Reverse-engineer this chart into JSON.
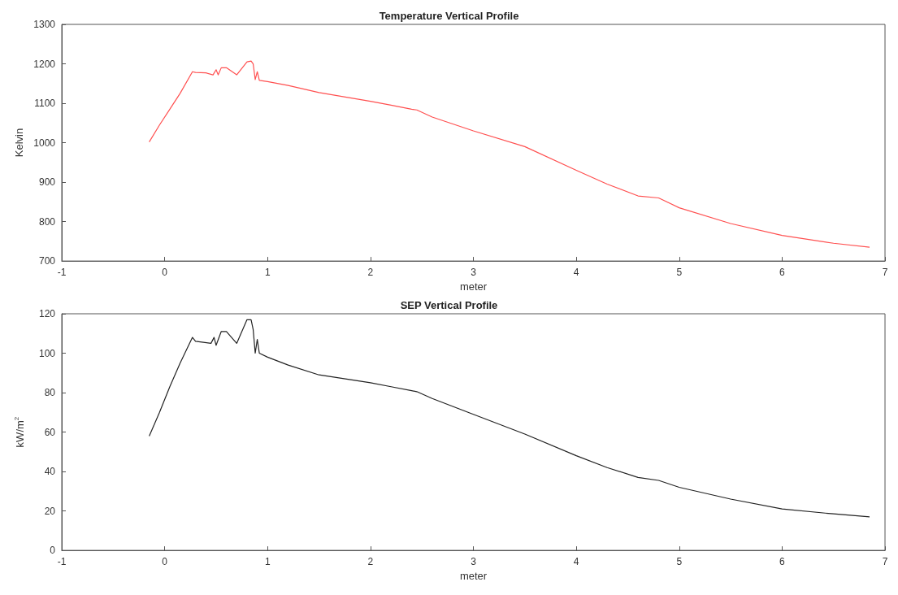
{
  "chart_data": [
    {
      "type": "line",
      "title": "Temperature Vertical Profile",
      "xlabel": "meter",
      "ylabel": "Kelvin",
      "xlim": [
        -1,
        7
      ],
      "xticks": [
        -1,
        0,
        1,
        2,
        3,
        4,
        5,
        6,
        7
      ],
      "ylim": [
        700,
        1300
      ],
      "yticks": [
        700,
        800,
        900,
        1000,
        1100,
        1200,
        1300
      ],
      "grid": false,
      "marker": "none",
      "line_style": "solid",
      "x": [
        -0.15,
        -0.05,
        0.05,
        0.15,
        0.27,
        0.3,
        0.4,
        0.47,
        0.5,
        0.52,
        0.55,
        0.6,
        0.7,
        0.8,
        0.84,
        0.86,
        0.88,
        0.9,
        0.92,
        1.0,
        1.2,
        1.5,
        2.0,
        2.2,
        2.4,
        2.45,
        2.6,
        3.0,
        3.5,
        4.0,
        4.3,
        4.6,
        4.8,
        5.0,
        5.5,
        6.0,
        6.5,
        6.85
      ],
      "series": [
        {
          "color": "#ff5050",
          "values": [
            1002,
            1045,
            1085,
            1125,
            1180,
            1178,
            1177,
            1172,
            1185,
            1172,
            1190,
            1190,
            1172,
            1205,
            1207,
            1200,
            1160,
            1180,
            1158,
            1155,
            1145,
            1127,
            1105,
            1095,
            1085,
            1083,
            1065,
            1030,
            990,
            930,
            895,
            865,
            860,
            835,
            795,
            765,
            745,
            735
          ]
        }
      ]
    },
    {
      "type": "line",
      "title": "SEP Vertical Profile",
      "xlabel": "meter",
      "ylabel": "kW/m$^{2}$",
      "xlim": [
        -1,
        7
      ],
      "xticks": [
        -1,
        0,
        1,
        2,
        3,
        4,
        5,
        6,
        7
      ],
      "ylim": [
        0,
        120
      ],
      "yticks": [
        0,
        20,
        40,
        60,
        80,
        100,
        120
      ],
      "grid": false,
      "marker": "none",
      "line_style": "solid",
      "x": [
        -0.15,
        -0.05,
        0.05,
        0.15,
        0.27,
        0.3,
        0.45,
        0.48,
        0.5,
        0.55,
        0.6,
        0.7,
        0.8,
        0.84,
        0.86,
        0.88,
        0.9,
        0.92,
        1.0,
        1.2,
        1.5,
        2.0,
        2.2,
        2.4,
        2.45,
        2.6,
        3.0,
        3.5,
        4.0,
        4.3,
        4.6,
        4.8,
        5.0,
        5.5,
        6.0,
        6.5,
        6.85
      ],
      "series": [
        {
          "color": "#222222",
          "values": [
            58,
            70,
            83,
            95,
            108,
            106,
            105,
            108,
            104,
            111,
            111,
            105,
            117,
            117,
            112,
            100,
            107,
            100,
            98,
            94,
            89,
            85,
            83,
            81,
            80.5,
            77,
            69,
            59,
            48,
            42,
            37,
            35.5,
            32,
            26,
            21,
            18.5,
            17
          ]
        }
      ]
    }
  ]
}
